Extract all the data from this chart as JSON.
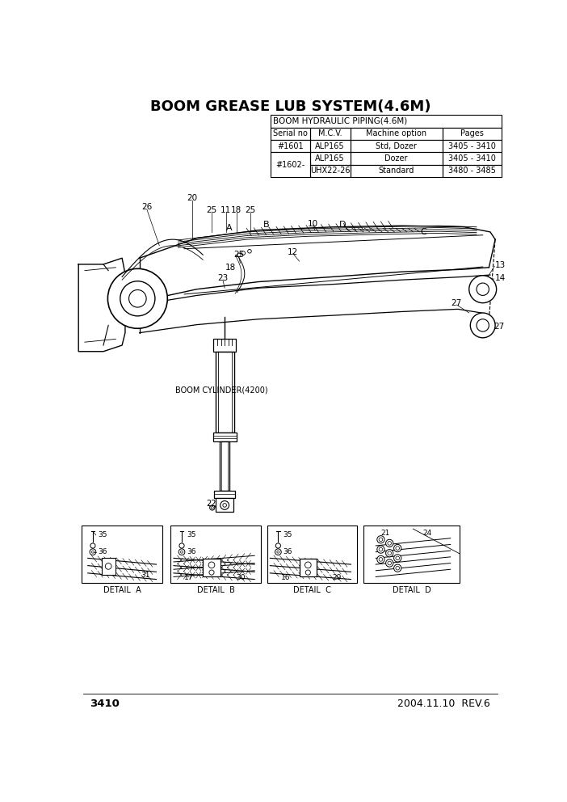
{
  "title": "BOOM GREASE LUB SYSTEM(4.6M)",
  "page_num": "3410",
  "date_rev": "2004.11.10  REV.6",
  "table_title": "BOOM HYDRAULIC PIPING(4.6M)",
  "table_headers": [
    "Serial no",
    "M.C.V.",
    "Machine option",
    "Pages"
  ],
  "table_rows": [
    [
      "#1601",
      "ALP165",
      "Std, Dozer",
      "3405 - 3410"
    ],
    [
      "#1602-",
      "ALP165",
      "Dozer",
      "3405 - 3410"
    ],
    [
      "",
      "UHX22-26",
      "Standard",
      "3480 - 3485"
    ]
  ],
  "bg_color": "#ffffff",
  "line_color": "#000000",
  "text_color": "#000000"
}
